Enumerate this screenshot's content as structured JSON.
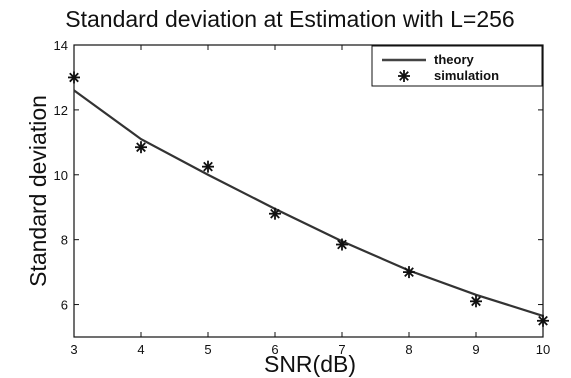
{
  "chart_data": {
    "type": "line",
    "title": "Standard deviation at Estimation with L=256",
    "xlabel": "SNR(dB)",
    "ylabel": "Standard deviation",
    "xlim": [
      3,
      10
    ],
    "ylim": [
      5,
      14
    ],
    "xticks": [
      3,
      4,
      5,
      6,
      7,
      8,
      9,
      10
    ],
    "yticks": [
      6,
      8,
      10,
      12,
      14
    ],
    "grid": false,
    "legend_position": "top-right",
    "series": [
      {
        "name": "theory",
        "style": "solid line",
        "x": [
          3,
          4,
          5,
          6,
          7,
          8,
          9,
          10
        ],
        "values": [
          12.6,
          11.1,
          10.0,
          8.95,
          7.95,
          7.05,
          6.3,
          5.65
        ]
      },
      {
        "name": "simulation",
        "style": "asterisk markers",
        "x": [
          3,
          4,
          5,
          6,
          7,
          8,
          9,
          10
        ],
        "values": [
          13.0,
          10.85,
          10.25,
          8.8,
          7.85,
          7.0,
          6.1,
          5.5
        ]
      }
    ]
  }
}
